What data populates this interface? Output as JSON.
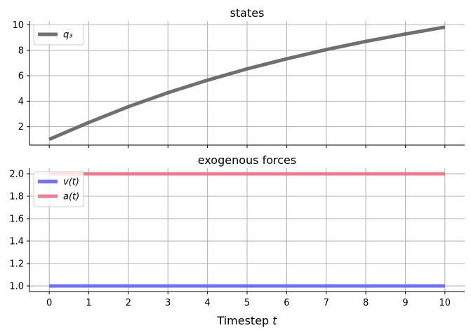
{
  "chart_data": [
    {
      "type": "line",
      "title": "states",
      "xlim": [
        -0.5,
        10.5
      ],
      "ylim": [
        0.55,
        10.3
      ],
      "yticks": [
        2,
        4,
        6,
        8,
        10
      ],
      "xticks": [
        0,
        1,
        2,
        3,
        4,
        5,
        6,
        7,
        8,
        9,
        10
      ],
      "show_xtick_labels": false,
      "grid": true,
      "legend_position": "top-left",
      "series": [
        {
          "name": "q₃",
          "color": "#606060",
          "x": [
            0,
            1,
            2,
            3,
            4,
            5,
            6,
            7,
            8,
            9,
            10
          ],
          "values": [
            1.0,
            2.33,
            3.57,
            4.67,
            5.65,
            6.54,
            7.33,
            8.05,
            8.7,
            9.28,
            9.82
          ]
        }
      ]
    },
    {
      "type": "line",
      "title": "exogenous forces",
      "xlim": [
        -0.5,
        10.5
      ],
      "ylim": [
        0.95,
        2.05
      ],
      "yticks": [
        1.0,
        1.2,
        1.4,
        1.6,
        1.8,
        2.0
      ],
      "xticks": [
        0,
        1,
        2,
        3,
        4,
        5,
        6,
        7,
        8,
        9,
        10
      ],
      "show_xtick_labels": true,
      "xlabel": "Timestep t",
      "grid": true,
      "legend_position": "top-left",
      "series": [
        {
          "name": "v(t)",
          "color": "#6565f0",
          "x": [
            0,
            1,
            2,
            3,
            4,
            5,
            6,
            7,
            8,
            9,
            10
          ],
          "values": [
            1,
            1,
            1,
            1,
            1,
            1,
            1,
            1,
            1,
            1,
            1
          ]
        },
        {
          "name": "a(t)",
          "color": "#e8728a",
          "x": [
            0,
            1,
            2,
            3,
            4,
            5,
            6,
            7,
            8,
            9,
            10
          ],
          "values": [
            2,
            2,
            2,
            2,
            2,
            2,
            2,
            2,
            2,
            2,
            2
          ]
        }
      ]
    }
  ]
}
